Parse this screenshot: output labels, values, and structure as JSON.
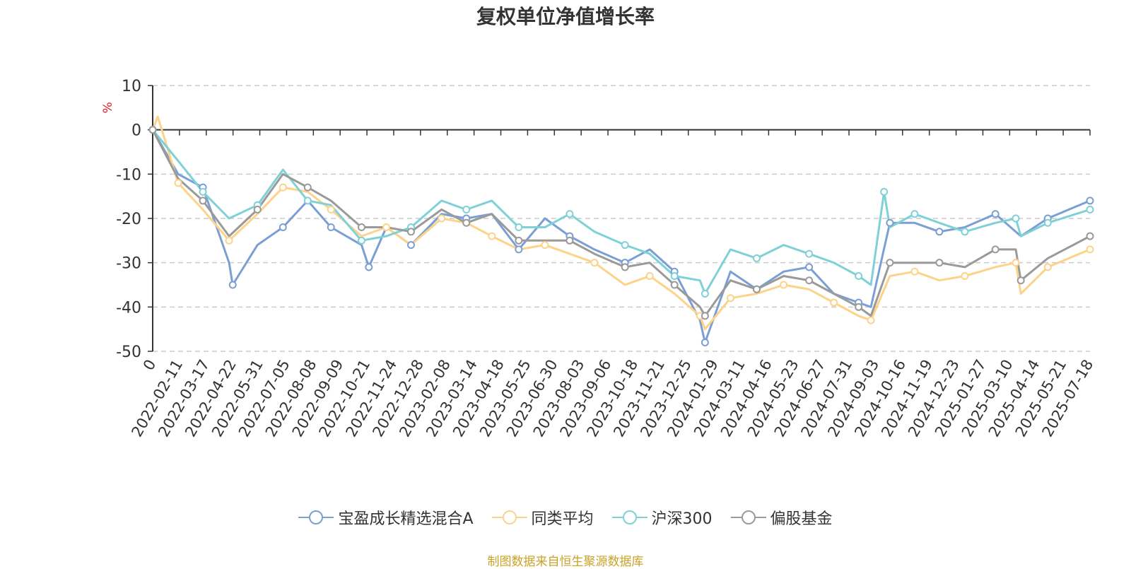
{
  "chart_data": {
    "type": "line",
    "title": "复权单位净值增长率",
    "ylabel": "%",
    "ylim": [
      -50,
      10
    ],
    "yticks": [
      "10",
      "0",
      "-10",
      "-20",
      "-30",
      "-40",
      "-50"
    ],
    "x_tick_labels": [
      "0",
      "2022-02-11",
      "2022-03-17",
      "2022-04-22",
      "2022-05-31",
      "2022-07-05",
      "2022-08-08",
      "2022-09-09",
      "2022-10-21",
      "2022-11-24",
      "2022-12-28",
      "2023-02-08",
      "2023-03-14",
      "2023-04-18",
      "2023-05-25",
      "2023-06-30",
      "2023-08-03",
      "2023-09-06",
      "2023-10-18",
      "2023-11-21",
      "2023-12-25",
      "2024-01-29",
      "2024-03-11",
      "2024-04-16",
      "2024-05-23",
      "2024-06-27",
      "2024-07-31",
      "2024-09-03",
      "2024-10-16",
      "2024-11-19",
      "2024-12-23",
      "2025-01-27",
      "2025-03-10",
      "2025-04-14",
      "2025-05-21",
      "2025-07-18"
    ],
    "grid": true,
    "legend_position": "bottom",
    "series": [
      {
        "name": "宝盈成长精选混合A",
        "color": "#7b9fd4",
        "x": [
          "2022-01-07",
          "2022-02-11",
          "2022-03-17",
          "2022-04-22",
          "2022-04-27",
          "2022-05-31",
          "2022-07-05",
          "2022-08-08",
          "2022-09-09",
          "2022-10-21",
          "2022-10-31",
          "2022-11-24",
          "2022-12-28",
          "2023-02-08",
          "2023-03-14",
          "2023-04-18",
          "2023-05-25",
          "2023-06-30",
          "2023-08-03",
          "2023-09-06",
          "2023-10-18",
          "2023-11-21",
          "2023-12-25",
          "2024-01-29",
          "2024-02-05",
          "2024-03-11",
          "2024-04-16",
          "2024-05-23",
          "2024-06-27",
          "2024-07-31",
          "2024-09-03",
          "2024-09-20",
          "2024-10-16",
          "2024-11-19",
          "2024-12-23",
          "2025-01-27",
          "2025-03-10",
          "2025-04-14",
          "2025-05-21",
          "2025-07-18"
        ],
        "values": [
          0,
          -10,
          -13,
          -30,
          -35,
          -26,
          -22,
          -16,
          -22,
          -26,
          -31,
          -22,
          -26,
          -19,
          -20,
          -19,
          -27,
          -20,
          -24,
          -27,
          -30,
          -27,
          -32,
          -43,
          -48,
          -32,
          -36,
          -32,
          -31,
          -37,
          -39,
          -40,
          -21,
          -21,
          -23,
          -22,
          -19,
          -24,
          -20,
          -16
        ]
      },
      {
        "name": "同类平均",
        "color": "#fdd38a",
        "x": [
          "2022-01-07",
          "2022-01-14",
          "2022-02-11",
          "2022-03-17",
          "2022-04-22",
          "2022-05-31",
          "2022-07-05",
          "2022-08-08",
          "2022-09-09",
          "2022-10-21",
          "2022-11-24",
          "2022-12-28",
          "2023-02-08",
          "2023-03-14",
          "2023-04-18",
          "2023-05-25",
          "2023-06-30",
          "2023-08-03",
          "2023-09-06",
          "2023-10-18",
          "2023-11-21",
          "2023-12-25",
          "2024-01-29",
          "2024-02-05",
          "2024-03-11",
          "2024-04-16",
          "2024-05-23",
          "2024-06-27",
          "2024-07-31",
          "2024-09-03",
          "2024-09-20",
          "2024-10-16",
          "2024-11-19",
          "2024-12-23",
          "2025-01-27",
          "2025-03-10",
          "2025-04-07",
          "2025-04-14",
          "2025-05-21",
          "2025-07-18"
        ],
        "values": [
          0,
          3,
          -12,
          -18,
          -25,
          -19,
          -13,
          -14,
          -18,
          -24,
          -22,
          -26,
          -20,
          -21,
          -24,
          -27,
          -26,
          -28,
          -30,
          -35,
          -33,
          -37,
          -42,
          -45,
          -38,
          -37,
          -35,
          -36,
          -39,
          -42,
          -43,
          -33,
          -32,
          -34,
          -33,
          -31,
          -30,
          -37,
          -31,
          -27
        ]
      },
      {
        "name": "沪深300",
        "color": "#7fd1d6",
        "x": [
          "2022-01-07",
          "2022-02-11",
          "2022-03-17",
          "2022-04-22",
          "2022-05-31",
          "2022-07-05",
          "2022-08-08",
          "2022-09-09",
          "2022-10-21",
          "2022-11-24",
          "2022-12-28",
          "2023-02-08",
          "2023-03-14",
          "2023-04-18",
          "2023-05-25",
          "2023-06-30",
          "2023-08-03",
          "2023-09-06",
          "2023-10-18",
          "2023-11-21",
          "2023-12-25",
          "2024-01-29",
          "2024-02-05",
          "2024-03-11",
          "2024-04-16",
          "2024-05-23",
          "2024-06-27",
          "2024-07-31",
          "2024-09-03",
          "2024-09-20",
          "2024-10-08",
          "2024-10-16",
          "2024-11-19",
          "2024-12-23",
          "2025-01-27",
          "2025-03-10",
          "2025-04-07",
          "2025-04-14",
          "2025-05-21",
          "2025-07-18"
        ],
        "values": [
          0,
          -7,
          -14,
          -20,
          -17,
          -9,
          -16,
          -17,
          -25,
          -24,
          -22,
          -16,
          -18,
          -16,
          -22,
          -22,
          -19,
          -23,
          -26,
          -28,
          -33,
          -34,
          -37,
          -27,
          -29,
          -26,
          -28,
          -30,
          -33,
          -35,
          -14,
          -22,
          -19,
          -21,
          -23,
          -21,
          -20,
          -24,
          -21,
          -18
        ]
      },
      {
        "name": "偏股基金",
        "color": "#9a9a9a",
        "x": [
          "2022-01-07",
          "2022-02-11",
          "2022-03-17",
          "2022-04-22",
          "2022-05-31",
          "2022-07-05",
          "2022-08-08",
          "2022-09-09",
          "2022-10-21",
          "2022-11-24",
          "2022-12-28",
          "2023-02-08",
          "2023-03-14",
          "2023-04-18",
          "2023-05-25",
          "2023-06-30",
          "2023-08-03",
          "2023-09-06",
          "2023-10-18",
          "2023-11-21",
          "2023-12-25",
          "2024-01-29",
          "2024-02-05",
          "2024-03-11",
          "2024-04-16",
          "2024-05-23",
          "2024-06-27",
          "2024-07-31",
          "2024-09-03",
          "2024-09-20",
          "2024-10-16",
          "2024-11-19",
          "2024-12-23",
          "2025-01-27",
          "2025-03-10",
          "2025-04-07",
          "2025-04-14",
          "2025-05-21",
          "2025-07-18"
        ],
        "values": [
          0,
          -11,
          -16,
          -24,
          -18,
          -10,
          -13,
          -16,
          -22,
          -22,
          -23,
          -18,
          -21,
          -19,
          -25,
          -25,
          -25,
          -28,
          -31,
          -30,
          -35,
          -40,
          -42,
          -34,
          -36,
          -33,
          -34,
          -37,
          -40,
          -42,
          -30,
          -30,
          -30,
          -31,
          -27,
          -27,
          -34,
          -29,
          -24
        ]
      }
    ]
  },
  "legend": {
    "items": [
      {
        "label": "宝盈成长精选混合A",
        "color": "#7b9fd4"
      },
      {
        "label": "同类平均",
        "color": "#fdd38a"
      },
      {
        "label": "沪深300",
        "color": "#7fd1d6"
      },
      {
        "label": "偏股基金",
        "color": "#9a9a9a"
      }
    ]
  },
  "source_text": "制图数据来自恒生聚源数据库"
}
